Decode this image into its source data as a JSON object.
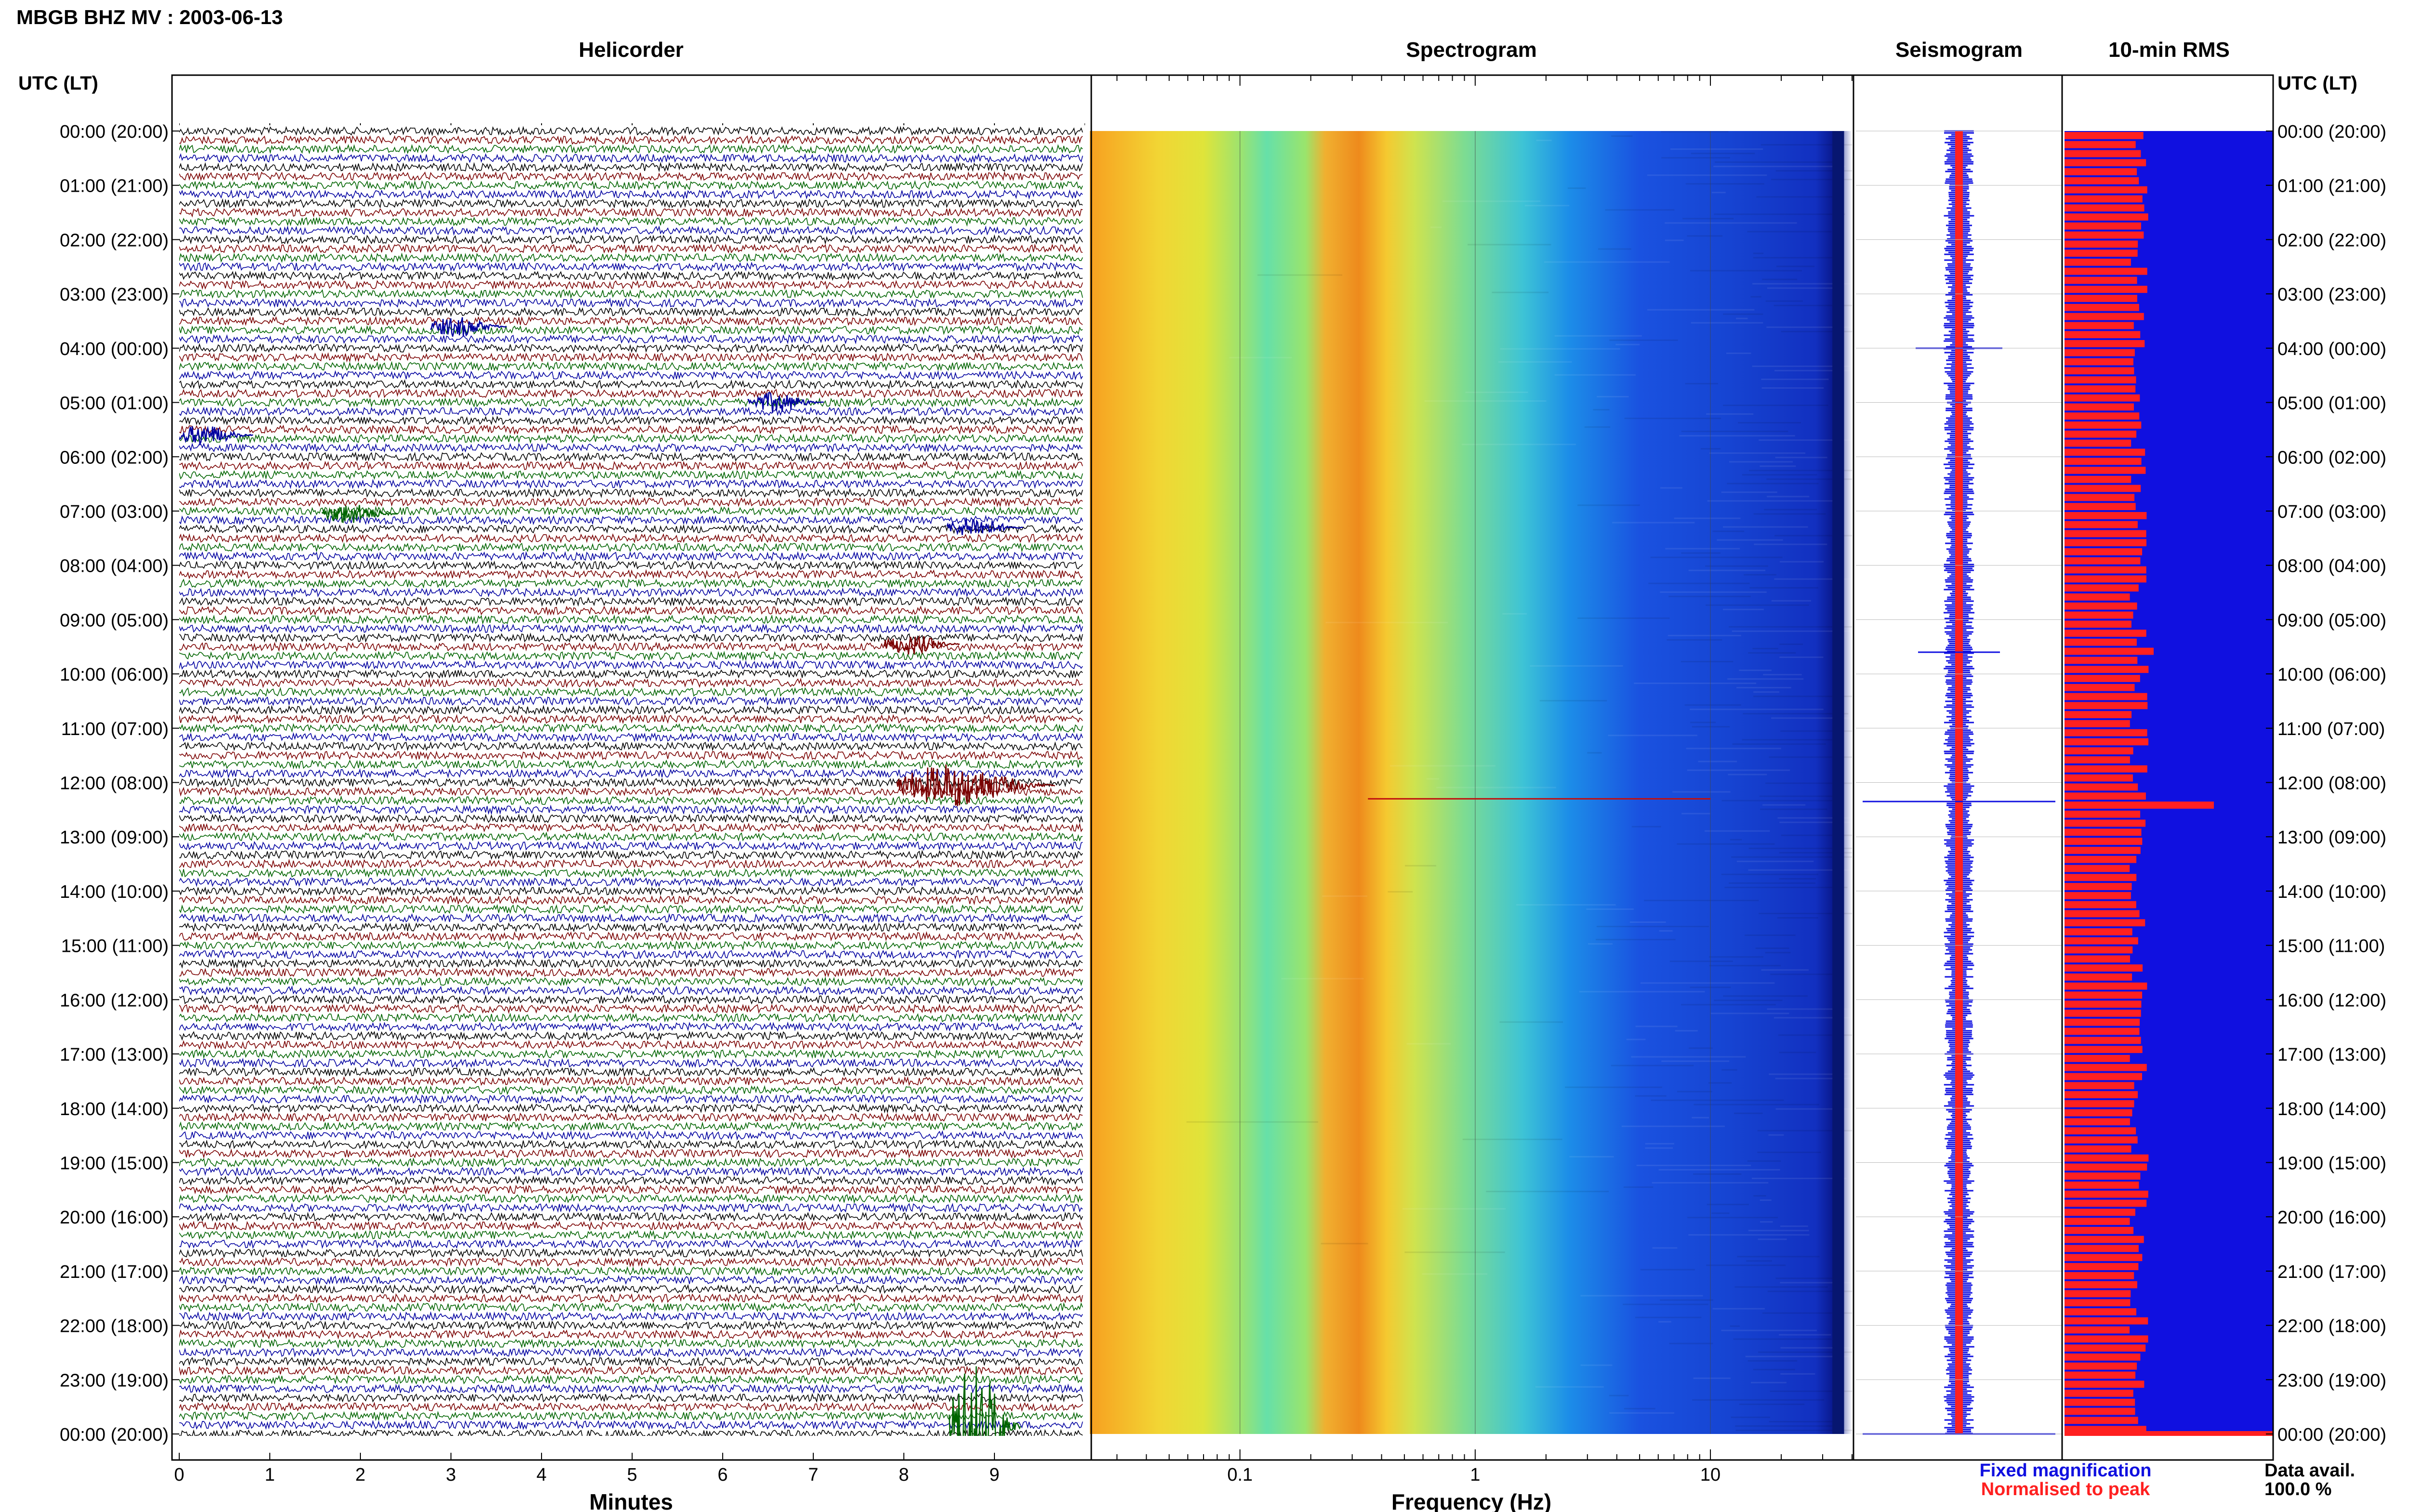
{
  "title": "MBGB BHZ MV : 2003-06-13",
  "tz_label": "UTC (LT)",
  "panels": {
    "helicorder": "Helicorder",
    "spectrogram": "Spectrogram",
    "seismogram": "Seismogram",
    "rms": "10-min RMS"
  },
  "xlabels": {
    "helicorder": "Minutes",
    "spectrogram": "Frequency (Hz)"
  },
  "legend": {
    "fixed": "Fixed magnification",
    "normalised": "Normalised to peak",
    "fixed_color": "#1010e0",
    "normalised_color": "#ff2020"
  },
  "data_avail": {
    "label": "Data avail.",
    "value": "100.0 %"
  },
  "chart_data": [
    {
      "type": "line",
      "title": "Helicorder",
      "xlabel": "Minutes",
      "x_ticks": [
        "0",
        "1",
        "2",
        "3",
        "4",
        "5",
        "6",
        "7",
        "8",
        "9"
      ],
      "xlim": [
        0,
        10
      ],
      "y_ticks": [
        "00:00 (20:00)",
        "01:00 (21:00)",
        "02:00 (22:00)",
        "03:00 (23:00)",
        "04:00 (00:00)",
        "05:00 (01:00)",
        "06:00 (02:00)",
        "07:00 (03:00)",
        "08:00 (04:00)",
        "09:00 (05:00)",
        "10:00 (06:00)",
        "11:00 (07:00)",
        "12:00 (08:00)",
        "13:00 (09:00)",
        "14:00 (10:00)",
        "15:00 (11:00)",
        "16:00 (12:00)",
        "17:00 (13:00)",
        "18:00 (14:00)",
        "19:00 (15:00)",
        "20:00 (16:00)",
        "21:00 (17:00)",
        "22:00 (18:00)",
        "23:00 (19:00)",
        "00:00 (20:00)"
      ],
      "trace_colors": [
        "#000000",
        "#7a0000",
        "#006400",
        "#0000a0"
      ],
      "events": [
        {
          "time_hours": 3.6,
          "minute": 3.2,
          "color": "#0000a0"
        },
        {
          "time_hours": 5.0,
          "minute": 6.7,
          "color": "#0000a0"
        },
        {
          "time_hours": 5.6,
          "minute": 0.4,
          "color": "#0000a0"
        },
        {
          "time_hours": 7.05,
          "minute": 2.0,
          "color": "#006400"
        },
        {
          "time_hours": 7.3,
          "minute": 8.9,
          "color": "#0000a0"
        },
        {
          "time_hours": 9.45,
          "minute": 8.2,
          "color": "#7a0000"
        },
        {
          "time_hours": 12.05,
          "minute": 8.8,
          "color": "#7a0000"
        },
        {
          "time_hours": 23.85,
          "minute": 8.9,
          "color": "#006400"
        }
      ]
    },
    {
      "type": "heatmap",
      "title": "Spectrogram",
      "xlabel": "Frequency (Hz)",
      "x_scale": "log",
      "xlim": [
        0.023,
        40
      ],
      "x_ticks": [
        "0.1",
        "1",
        "10"
      ]
    },
    {
      "type": "line",
      "title": "Seismogram",
      "series": [
        {
          "name": "Fixed magnification",
          "color": "#1010e0"
        },
        {
          "name": "Normalised to peak",
          "color": "#ff2020"
        }
      ]
    },
    {
      "type": "bar",
      "title": "10-min RMS",
      "series": [
        {
          "name": "Fixed magnification",
          "color": "#1010e0"
        },
        {
          "name": "Normalised to peak",
          "color": "#ff2020"
        }
      ],
      "data_availability": "100.0 %"
    }
  ]
}
